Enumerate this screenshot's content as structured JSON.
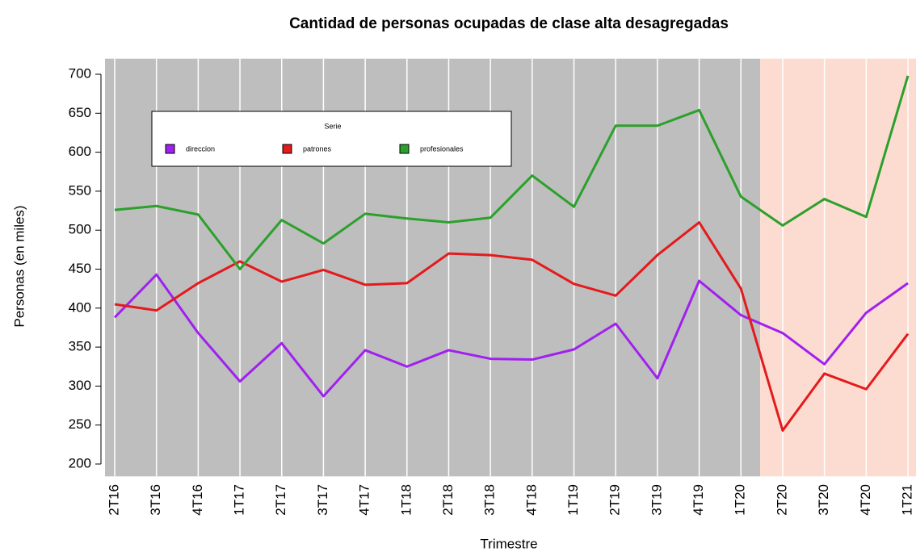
{
  "chart_data": {
    "type": "line",
    "title": "Cantidad de personas ocupadas de clase alta desagregadas",
    "x_label": "Trimestre",
    "y_label": "Personas (en miles)",
    "legend_title": "Serie",
    "legend": "top-left",
    "categories": [
      "2T16",
      "3T16",
      "4T16",
      "1T17",
      "2T17",
      "3T17",
      "4T17",
      "1T18",
      "2T18",
      "3T18",
      "4T18",
      "1T19",
      "2T19",
      "3T19",
      "4T19",
      "1T20",
      "2T20",
      "3T20",
      "4T20",
      "1T21"
    ],
    "series": [
      {
        "name": "direccion",
        "color": "#a020f0",
        "values": [
          388,
          443,
          368,
          306,
          355,
          287,
          346,
          325,
          346,
          335,
          334,
          347,
          380,
          310,
          435,
          391,
          368,
          328,
          394,
          432
        ]
      },
      {
        "name": "patrones",
        "color": "#e41a1c",
        "values": [
          405,
          397,
          432,
          460,
          434,
          449,
          430,
          432,
          470,
          468,
          462,
          431,
          416,
          468,
          510,
          425,
          243,
          316,
          296,
          367
        ]
      },
      {
        "name": "profesionales",
        "color": "#2ca02c",
        "values": [
          526,
          531,
          520,
          450,
          513,
          483,
          521,
          515,
          510,
          516,
          570,
          530,
          634,
          634,
          654,
          543,
          506,
          540,
          517,
          698
        ]
      }
    ],
    "ylim": [
      180,
      720
    ],
    "yticks": [
      200,
      250,
      300,
      350,
      400,
      450,
      500,
      550,
      600,
      650,
      700
    ],
    "grid": true
  }
}
